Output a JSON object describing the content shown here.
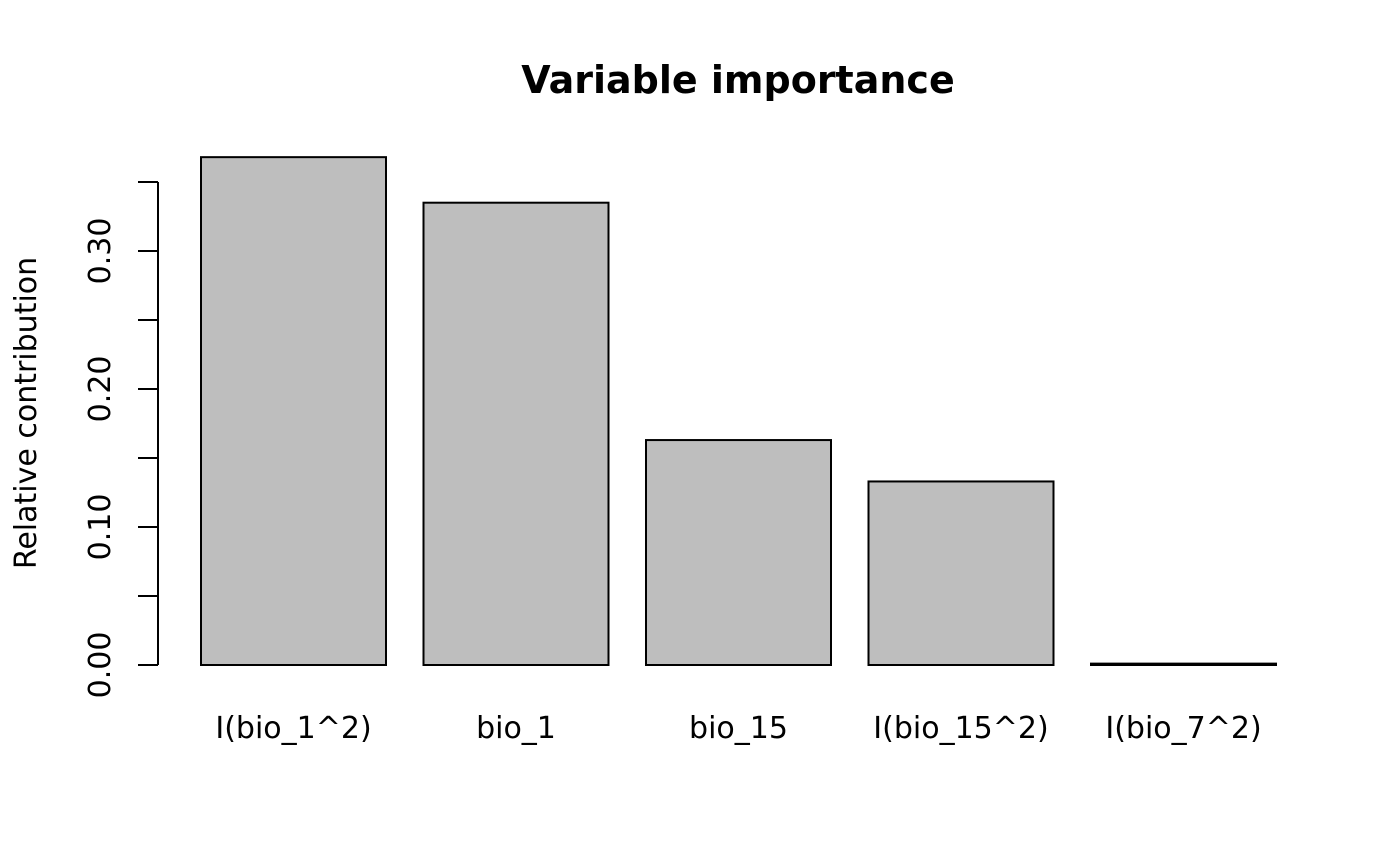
{
  "chart_data": {
    "type": "bar",
    "title": "Variable importance",
    "xlabel": "",
    "ylabel": "Relative contribution",
    "categories": [
      "I(bio_1^2)",
      "bio_1",
      "bio_15",
      "I(bio_15^2)",
      "I(bio_7^2)"
    ],
    "values": [
      0.368,
      0.335,
      0.163,
      0.133,
      0.001
    ],
    "ylim": [
      0,
      0.35
    ],
    "yticks": [
      0.0,
      0.05,
      0.1,
      0.15,
      0.2,
      0.25,
      0.3,
      0.35
    ],
    "ytick_labels": [
      "0.00",
      "",
      "0.10",
      "",
      "0.20",
      "",
      "0.30",
      ""
    ],
    "grid": false,
    "bar_fill": "#bebebe",
    "bar_stroke": "#000000"
  }
}
